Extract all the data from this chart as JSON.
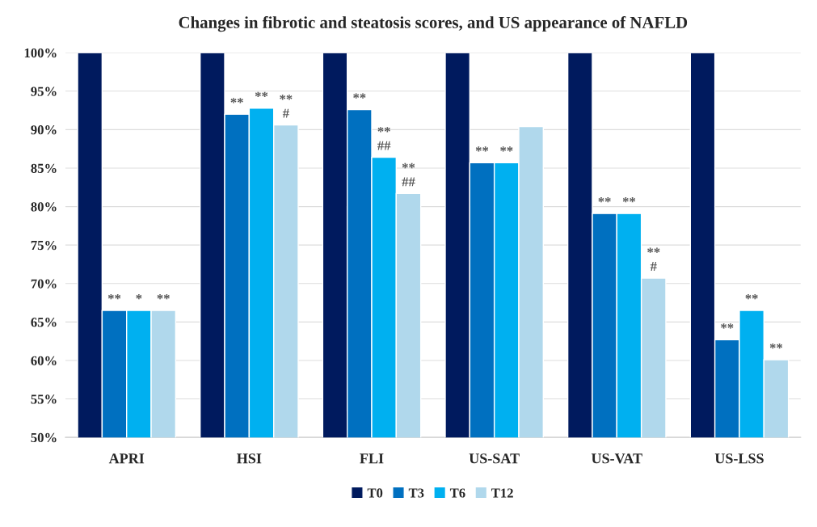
{
  "chart_data": {
    "type": "bar",
    "title": "Changes in fibrotic and steatosis scores, and US appearance of NAFLD",
    "categories": [
      "APRI",
      "HSI",
      "FLI",
      "US-SAT",
      "US-VAT",
      "US-LSS"
    ],
    "series": [
      {
        "name": "T0",
        "color": "#001a5e",
        "values": [
          100,
          100,
          100,
          100,
          100,
          100
        ]
      },
      {
        "name": "T3",
        "color": "#0070c0",
        "values": [
          66.5,
          92.0,
          92.6,
          85.7,
          79.1,
          62.7
        ],
        "value_labels": [
          "**",
          "**",
          "**",
          "**",
          "**",
          "**"
        ]
      },
      {
        "name": "T6",
        "color": "#00b0f0",
        "values": [
          66.5,
          92.8,
          86.4,
          85.7,
          79.1,
          66.5
        ],
        "value_labels": [
          "*",
          "**",
          "**\n##",
          "**",
          "**",
          "**"
        ]
      },
      {
        "name": "T12",
        "color": "#b0d8ec",
        "values": [
          66.5,
          90.6,
          81.7,
          90.4,
          70.7,
          60.1
        ],
        "value_labels": [
          "**",
          "**\n#",
          "**\n##",
          null,
          "**\n#",
          "**"
        ]
      }
    ],
    "ylim": [
      50,
      100
    ],
    "yticks": [
      {
        "value": 50,
        "label": "50%"
      },
      {
        "value": 55,
        "label": "55%"
      },
      {
        "value": 60,
        "label": "60%"
      },
      {
        "value": 65,
        "label": "65%"
      },
      {
        "value": 70,
        "label": "70%"
      },
      {
        "value": 75,
        "label": "75%"
      },
      {
        "value": 80,
        "label": "80%"
      },
      {
        "value": 85,
        "label": "85%"
      },
      {
        "value": 90,
        "label": "90%"
      },
      {
        "value": 95,
        "label": "95%"
      },
      {
        "value": 100,
        "label": "100%"
      }
    ],
    "grid": "y",
    "legend": "bottom"
  }
}
